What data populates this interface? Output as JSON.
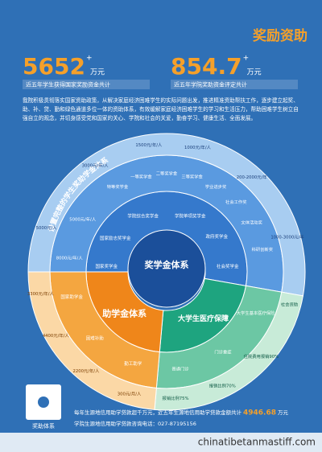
{
  "header": {
    "title": "奖励资助"
  },
  "stats": [
    {
      "value": "5652",
      "sup": "+",
      "unit": "万元",
      "caption": "近五年学生获得国家奖励资金共计"
    },
    {
      "value": "854.7",
      "sup": "+",
      "unit": "万元",
      "caption": "近五年学院奖助资金评定共计"
    }
  ],
  "intro": "我院积极贯彻落实国家资助政策，从解决家庭经济困难学生的实际问题出发，推进精准资助帮扶工作，逐步建立起奖、助、补、贷、勤和绿色通道多位一体的资助体系，有效缓解家庭经济困难学生的学习和生活压力，帮助困难学生树立自强自立的观念，并切身感受党和国家的关心、学院和社会的关爱，勤奋学习、健康生活、全面发展。",
  "wheel": {
    "arc_title": "设置完整的学生奖助学金体系",
    "center": "奖学金体系",
    "labels": [
      "国家奖学金",
      "国家励志奖学金",
      "学院综合奖学金",
      "学院单项奖学金",
      "政府奖学金",
      "社会奖学金",
      "8000元/年/人",
      "5000元/年/人",
      "特等奖学金",
      "一等奖学金",
      "二等奖学金",
      "三等奖学金",
      "学业进步奖",
      "社会工作奖",
      "文体活动奖",
      "科研创新奖",
      "5000元/人",
      "3000元/年/人",
      "1500元/年/人",
      "1000元/年/人",
      "200-2000元/年",
      "1000-3000元/年",
      "助学金体系",
      "国家助学金",
      "困难补助",
      "勤工助学",
      "3300元/年/人",
      "4400元/年/人",
      "2200元/年/人",
      "300元/月/人",
      "大学生医疗保障",
      "大学生基本医疗保险",
      "门诊重症",
      "普通门诊",
      "社会资助",
      "住院费用报销90%",
      "报销比例70%",
      "报销比例75%"
    ]
  },
  "footer": {
    "loan_line": "每年生源地信用助学贷款超千万元，近五年生源地信用助学贷款金额共计",
    "loan_amount": "4946.68",
    "loan_unit": "万元",
    "phone": "学院生源地信用助学贷款咨询电话：027-87195156",
    "qr_label": "奖助体系"
  },
  "watermark": "chinatibetanmastiff.com"
}
